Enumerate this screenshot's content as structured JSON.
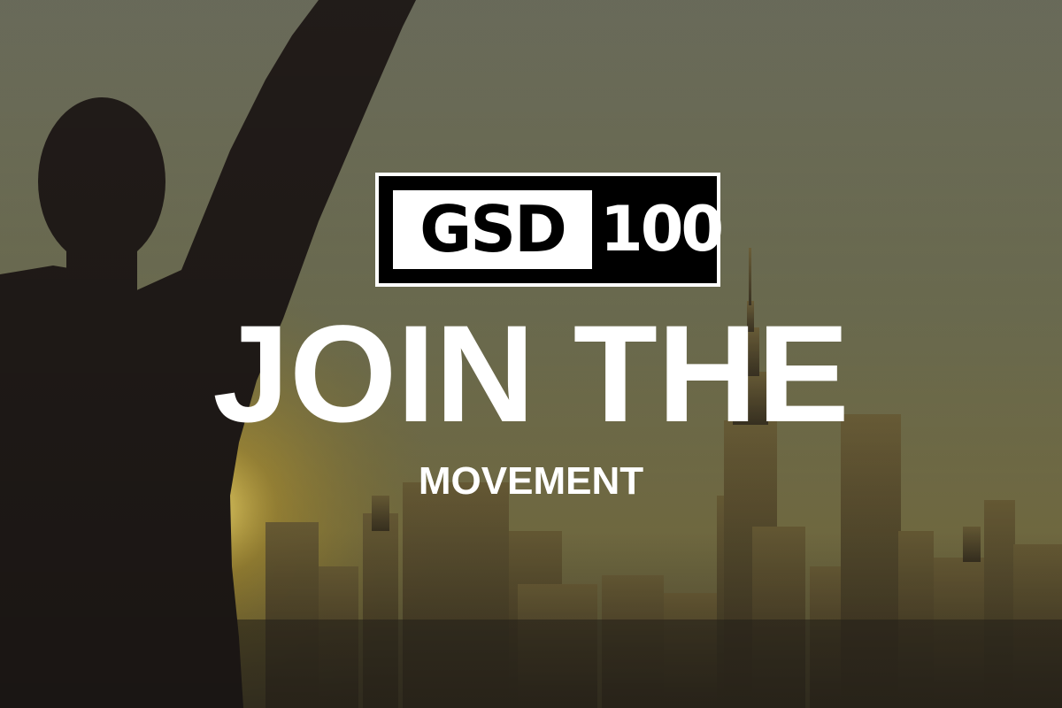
{
  "logo": {
    "left_text": "GSD",
    "right_text": "100"
  },
  "headline": "JOIN THE",
  "subheadline": "MOVEMENT",
  "colors": {
    "text": "#ffffff",
    "logo_bg": "#000000",
    "logo_panel": "#ffffff"
  }
}
